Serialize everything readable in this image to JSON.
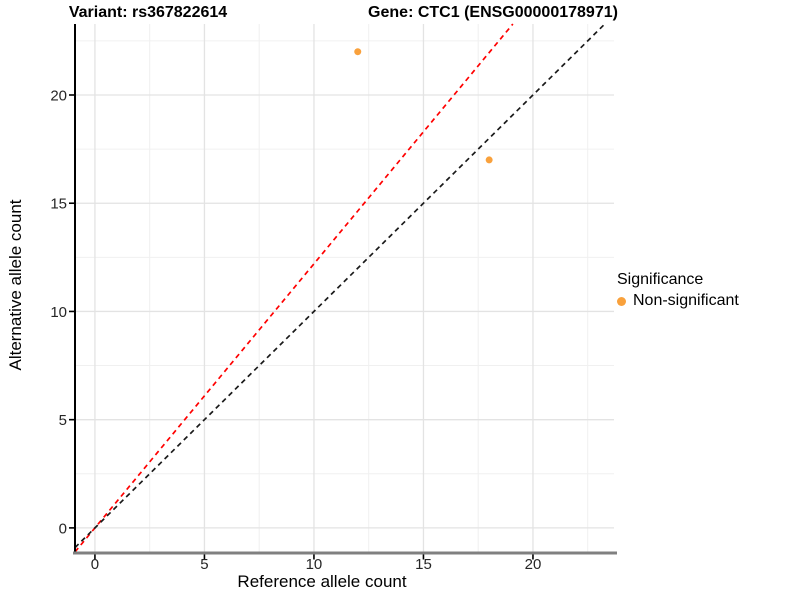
{
  "chart_data": {
    "type": "scatter",
    "title_left": "Variant: rs367822614",
    "title_right": "Gene: CTC1 (ENSG00000178971)",
    "xlabel": "Reference allele count",
    "ylabel": "Alternative allele count",
    "xlim": [
      -0.91,
      23.7
    ],
    "ylim": [
      -1.16,
      23.28
    ],
    "x_ticks": [
      0,
      5,
      10,
      15,
      20
    ],
    "y_ticks": [
      0,
      5,
      10,
      15,
      20
    ],
    "minor_tick_step": 2.5,
    "grid": true,
    "points": [
      {
        "x": 12,
        "y": 22,
        "series": "Non-significant"
      },
      {
        "x": 18,
        "y": 17,
        "series": "Non-significant"
      }
    ],
    "lines": [
      {
        "name": "expected-ratio-line",
        "slope": 1.22,
        "intercept": 0,
        "color": "#FF0000",
        "style": "dashed"
      },
      {
        "name": "identity-line",
        "slope": 1.0,
        "intercept": 0,
        "color": "#1A1A1A",
        "style": "dashed"
      }
    ],
    "legend": {
      "position": "right",
      "title": "Significance",
      "items": [
        {
          "label": "Non-significant",
          "color": "#F9A13C"
        }
      ]
    },
    "colors": {
      "background": "#FFFFFF",
      "point": "#F9A13C",
      "grid_major": "#E3E3E3",
      "grid_minor": "#F0F0F0",
      "axis_line_left": "#000000",
      "axis_line_bottom": "#808080",
      "tick": "#000000",
      "tick_label": "#262626"
    }
  }
}
